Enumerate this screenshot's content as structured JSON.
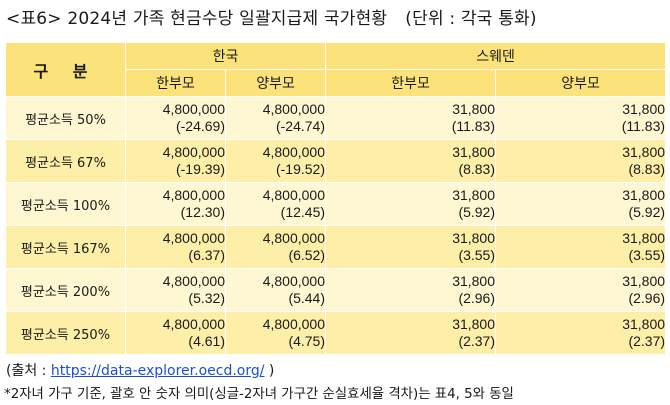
{
  "title": {
    "main": "<표6> 2024년 가족 현금수당 일괄지급제 국가현황",
    "unit": "(단위 : 각국 통화)"
  },
  "table": {
    "corner_label": "구 분",
    "countries": [
      "한국",
      "스웨덴"
    ],
    "sub_headers": [
      "한부모",
      "양부모",
      "한부모",
      "양부모"
    ],
    "rows": [
      {
        "label": "평균소득 50%",
        "cells": [
          [
            "4,800,000",
            "(-24.69)"
          ],
          [
            "4,800,000",
            "(-24.74)"
          ],
          [
            "31,800",
            "(11.83)"
          ],
          [
            "31,800",
            "(11.83)"
          ]
        ]
      },
      {
        "label": "평균소득 67%",
        "cells": [
          [
            "4,800,000",
            "(-19.39)"
          ],
          [
            "4,800,000",
            "(-19.52)"
          ],
          [
            "31,800",
            "(8.83)"
          ],
          [
            "31,800",
            "(8.83)"
          ]
        ]
      },
      {
        "label": "평균소득 100%",
        "cells": [
          [
            "4,800,000",
            "(12.30)"
          ],
          [
            "4,800,000",
            "(12.45)"
          ],
          [
            "31,800",
            "(5.92)"
          ],
          [
            "31,800",
            "(5.92)"
          ]
        ]
      },
      {
        "label": "평균소득 167%",
        "cells": [
          [
            "4,800,000",
            "(6.37)"
          ],
          [
            "4,800,000",
            "(6.52)"
          ],
          [
            "31,800",
            "(3.55)"
          ],
          [
            "31,800",
            "(3.55)"
          ]
        ]
      },
      {
        "label": "평균소득 200%",
        "cells": [
          [
            "4,800,000",
            "(5.32)"
          ],
          [
            "4,800,000",
            "(5.44)"
          ],
          [
            "31,800",
            "(2.96)"
          ],
          [
            "31,800",
            "(2.96)"
          ]
        ]
      },
      {
        "label": "평균소득 250%",
        "cells": [
          [
            "4,800,000",
            "(4.61)"
          ],
          [
            "4,800,000",
            "(4.75)"
          ],
          [
            "31,800",
            "(2.37)"
          ],
          [
            "31,800",
            "(2.37)"
          ]
        ]
      }
    ]
  },
  "source": {
    "prefix": "(출처 : ",
    "link": "https://data-explorer.oecd.org/",
    "suffix": " )"
  },
  "note": "*2자녀 가구 기준, 괄호 안 숫자 의미(싱글-2자녀 가구간 순실효세율 격차)는 표4, 5와 동일",
  "colors": {
    "header_bg": "#fbe27a",
    "row_light_bg": "#fff7d2",
    "row_dark_bg": "#fdeea8",
    "link": "#1f4fd1"
  }
}
